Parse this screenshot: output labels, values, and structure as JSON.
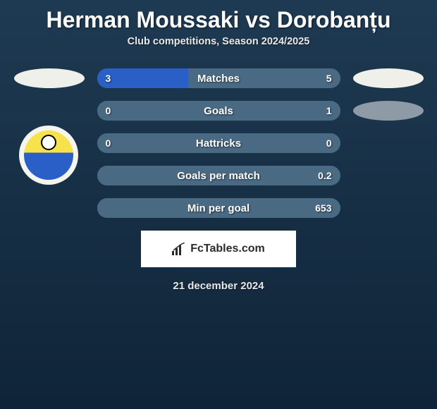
{
  "title": "Herman Moussaki vs Dorobanțu",
  "subtitle": "Club competitions, Season 2024/2025",
  "date": "21 december 2024",
  "footer_brand": "FcTables.com",
  "colors": {
    "left_bar": "#2a5fc7",
    "right_bar": "#4a6a84",
    "oval_light": "#f0f0eb",
    "oval_gray": "#8e9aa6",
    "badge_bg": "#f5f5f0"
  },
  "rows": [
    {
      "label": "Matches",
      "left": "3",
      "right": "5",
      "leftPct": 37.5,
      "rightPct": 62.5,
      "leftOval": "light",
      "rightOval": "light"
    },
    {
      "label": "Goals",
      "left": "0",
      "right": "1",
      "leftPct": 0,
      "rightPct": 100,
      "leftOval": null,
      "rightOval": "gray"
    },
    {
      "label": "Hattricks",
      "left": "0",
      "right": "0",
      "leftPct": 0,
      "rightPct": 100,
      "leftOval": null,
      "rightOval": null
    },
    {
      "label": "Goals per match",
      "left": "",
      "right": "0.2",
      "leftPct": 0,
      "rightPct": 100,
      "leftOval": null,
      "rightOval": null
    },
    {
      "label": "Min per goal",
      "left": "",
      "right": "653",
      "leftPct": 0,
      "rightPct": 100,
      "leftOval": null,
      "rightOval": null
    }
  ]
}
